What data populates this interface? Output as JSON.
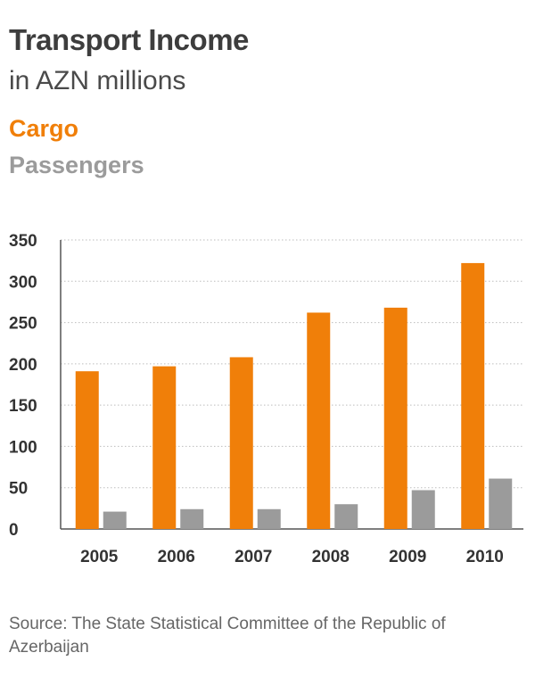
{
  "header": {
    "title": "Transport Income",
    "subtitle": "in AZN millions"
  },
  "legend": {
    "cargo": "Cargo",
    "passengers": "Passengers"
  },
  "footer": {
    "source": "Source: The State Statistical Committee of the Republic of Azerbaijan"
  },
  "colors": {
    "cargo": "#f07f09",
    "passengers": "#9b9b9b",
    "grid": "#bdbdbd",
    "axis": "#555555",
    "text": "#333333"
  },
  "chart_data": {
    "type": "bar",
    "title": "Transport Income",
    "subtitle": "in AZN millions",
    "categories": [
      "2005",
      "2006",
      "2007",
      "2008",
      "2009",
      "2010"
    ],
    "series": [
      {
        "name": "Cargo",
        "values": [
          191,
          197,
          208,
          262,
          268,
          322
        ]
      },
      {
        "name": "Passengers",
        "values": [
          21,
          24,
          24,
          30,
          47,
          61
        ]
      }
    ],
    "ylim": [
      0,
      350
    ],
    "yticks": [
      0,
      50,
      100,
      150,
      200,
      250,
      300,
      350
    ],
    "grid": true,
    "legend": "top-left"
  }
}
